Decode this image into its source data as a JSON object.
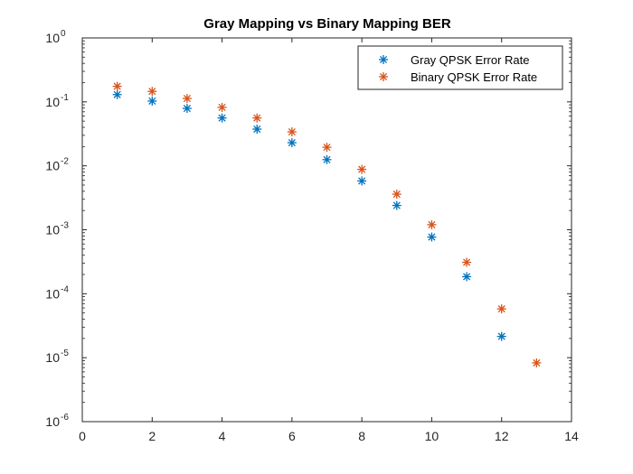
{
  "chart_data": {
    "type": "scatter",
    "title": "Gray Mapping vs Binary Mapping BER",
    "xlabel": "",
    "ylabel": "",
    "xlim": [
      0,
      14
    ],
    "ylim": [
      1e-06,
      1
    ],
    "yscale": "log",
    "grid": false,
    "legend_position": "top-right",
    "marker": "asterisk",
    "x_ticks": [
      0,
      2,
      4,
      6,
      8,
      10,
      12,
      14
    ],
    "y_ticks": [
      1e-06,
      1e-05,
      0.0001,
      0.001,
      0.01,
      0.1,
      1
    ],
    "x_tick_labels": [
      "0",
      "2",
      "4",
      "6",
      "8",
      "10",
      "12",
      "14"
    ],
    "y_tick_labels": [
      {
        "base": "10",
        "exp": "-6"
      },
      {
        "base": "10",
        "exp": "-5"
      },
      {
        "base": "10",
        "exp": "-4"
      },
      {
        "base": "10",
        "exp": "-3"
      },
      {
        "base": "10",
        "exp": "-2"
      },
      {
        "base": "10",
        "exp": "-1"
      },
      {
        "base": "10",
        "exp": "0"
      }
    ],
    "series": [
      {
        "name": "Gray QPSK Error Rate",
        "color": "#0072BD",
        "x": [
          1,
          2,
          3,
          4,
          5,
          6,
          7,
          8,
          9,
          10,
          11,
          12
        ],
        "y": [
          0.13,
          0.103,
          0.079,
          0.056,
          0.0375,
          0.023,
          0.0125,
          0.0058,
          0.0024,
          0.00077,
          0.000185,
          2.15e-05
        ]
      },
      {
        "name": "Binary QPSK Error Rate",
        "color": "#D95319",
        "x": [
          1,
          2,
          3,
          4,
          5,
          6,
          7,
          8,
          9,
          10,
          11,
          12,
          13
        ],
        "y": [
          0.175,
          0.146,
          0.113,
          0.082,
          0.056,
          0.034,
          0.0195,
          0.0088,
          0.0036,
          0.0012,
          0.00031,
          5.8e-05,
          8.3e-06
        ]
      }
    ]
  }
}
